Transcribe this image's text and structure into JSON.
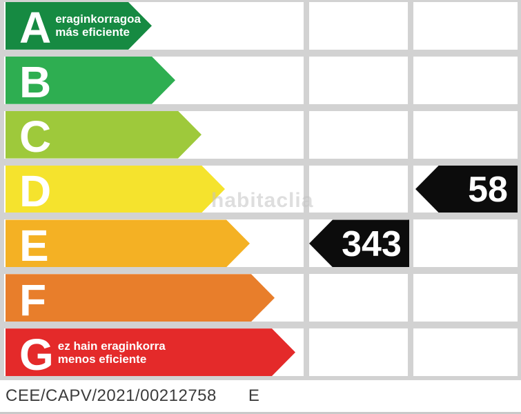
{
  "chart_data": {
    "type": "bar",
    "title": "Energy efficiency rating scale",
    "categories": [
      "A",
      "B",
      "C",
      "D",
      "E",
      "F",
      "G"
    ],
    "bar_colors": [
      "#168a42",
      "#2eae51",
      "#9ec93b",
      "#f5e32d",
      "#f4b124",
      "#e87e2b",
      "#e42a2a"
    ],
    "bar_lengths_relative": [
      0.5,
      0.58,
      0.67,
      0.75,
      0.83,
      0.92,
      0.99
    ],
    "annotations": [
      {
        "category": "A",
        "text": "eraginkorragoa / más eficiente"
      },
      {
        "category": "G",
        "text": "ez hain eraginkorra / menos eficiente"
      }
    ],
    "indicators": [
      {
        "value": 343,
        "rating": "E",
        "column": 1
      },
      {
        "value": 58,
        "rating": "D",
        "column": 2
      }
    ],
    "legend_position": "none",
    "grid": "on"
  },
  "rows": [
    {
      "letter": "A",
      "label_line1": "eraginkorragoa",
      "label_line2": "más eficiente",
      "color": "#168a42"
    },
    {
      "letter": "B",
      "color": "#2eae51"
    },
    {
      "letter": "C",
      "color": "#9ec93b"
    },
    {
      "letter": "D",
      "color": "#f5e32d"
    },
    {
      "letter": "E",
      "color": "#f4b124"
    },
    {
      "letter": "F",
      "color": "#e87e2b"
    },
    {
      "letter": "G",
      "label_line1": "ez hain eraginkorra",
      "label_line2": "menos eficiente",
      "color": "#e42a2a"
    }
  ],
  "indicators": {
    "d_value": "58",
    "e_value": "343",
    "color": "#0c0c0c"
  },
  "watermark": "habitaclia",
  "footer": {
    "reference": "CEE/CAPV/2021/00212758",
    "rating": "E"
  },
  "palette": {
    "grid_gray": "#d2d2d2",
    "footer_text": "#3c3c3c"
  }
}
